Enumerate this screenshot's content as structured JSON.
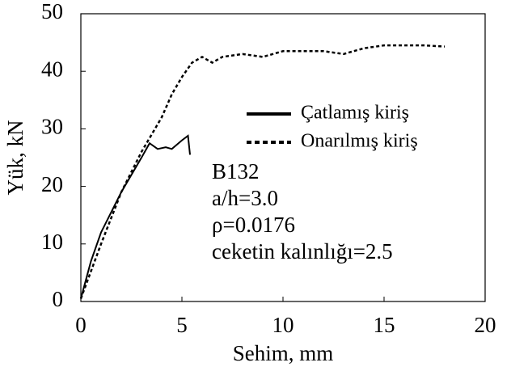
{
  "chart_data": {
    "type": "line",
    "xlabel": "Sehim, mm",
    "ylabel": "Yük, kN",
    "xlim": [
      0,
      20
    ],
    "ylim": [
      0,
      50
    ],
    "xticks": [
      0,
      5,
      10,
      15,
      20
    ],
    "yticks": [
      0,
      10,
      20,
      30,
      40,
      50
    ],
    "legend": "upper right",
    "annotations": [
      "B132",
      "a/h=3.0",
      "ρ=0.0176",
      "ceketin kalınlığı=2.5"
    ],
    "series": [
      {
        "name": "Çatlamış kiriş",
        "color": "#000000",
        "style": "solid",
        "x": [
          0,
          0.5,
          1,
          2,
          3,
          3.4,
          3.8,
          4.2,
          4.5,
          5,
          5.3,
          5.4
        ],
        "values": [
          0.5,
          7,
          12,
          19,
          25,
          27.5,
          26.5,
          26.8,
          26.5,
          28,
          28.8,
          25.5
        ]
      },
      {
        "name": "Onarılmış kiriş",
        "color": "#000000",
        "style": "dotted",
        "x": [
          0,
          1,
          2,
          3,
          3.5,
          4,
          4.5,
          5,
          5.5,
          6,
          6.5,
          7,
          8,
          9,
          10,
          11,
          12,
          13,
          13.5,
          14,
          15,
          16,
          17,
          18
        ],
        "values": [
          0.5,
          10,
          19,
          26,
          29,
          32,
          36,
          39,
          41.5,
          42.5,
          41.5,
          42.5,
          43,
          42.5,
          43.5,
          43.5,
          43.5,
          43,
          43.5,
          44,
          44.5,
          44.5,
          44.5,
          44.3
        ]
      }
    ]
  }
}
